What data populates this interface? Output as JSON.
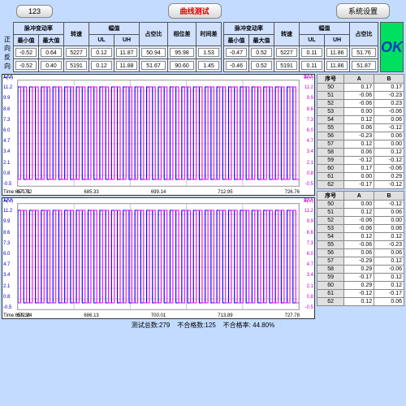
{
  "topbar": {
    "id": "123",
    "curve": "曲线测试",
    "sys": "系统设置"
  },
  "rowlabels": {
    "fwd": "正向",
    "rev": "反向"
  },
  "hdr": {
    "pulse": "脉冲变动率",
    "min": "最小值",
    "max": "最大值",
    "speed": "转速",
    "amp": "幅值",
    "ul": "UL",
    "uh": "UH",
    "duty": "占空比",
    "phase": "相位差",
    "time": "时间差"
  },
  "left": {
    "fwd": {
      "min": "-0.52",
      "max": "0.64",
      "speed": "5227",
      "ul": "0.12",
      "uh": "11.87",
      "duty": "50.94",
      "phase": "95.98",
      "time": "1.53"
    },
    "rev": {
      "min": "-0.52",
      "max": "0.40",
      "speed": "5191",
      "ul": "0.12",
      "uh": "11.88",
      "duty": "51.67",
      "phase": "90.60",
      "time": "1.45"
    }
  },
  "right": {
    "fwd": {
      "min": "-0.47",
      "max": "0.52",
      "speed": "5227",
      "ul": "0.11",
      "uh": "11.86",
      "duty": "51.76"
    },
    "rev": {
      "min": "-0.46",
      "max": "0.52",
      "speed": "5191",
      "ul": "0.11",
      "uh": "11.86",
      "duty": "51.87"
    }
  },
  "ok": "OK",
  "chart": {
    "yticks": [
      "12.5",
      "11.2",
      "9.9",
      "8.6",
      "7.3",
      "6.0",
      "4.7",
      "3.4",
      "2.1",
      "0.8",
      "-0.5"
    ],
    "ylabel": "A(V)",
    "yrlabel": "B(V)",
    "x1": [
      "Time:657.71",
      "671.52",
      "685.33",
      "699.14",
      "712.95",
      "726.76"
    ],
    "x2": [
      "Time:658.36",
      "672.24",
      "686.13",
      "700.01",
      "713.89",
      "727.78"
    ],
    "colorA": "#0000ff",
    "colorB": "#ff00ff",
    "grid": "#d0d0d0"
  },
  "data1": {
    "hdr": {
      "seq": "序号",
      "a": "A",
      "b": "B"
    },
    "rows": [
      [
        "50",
        "0.17",
        "0.17"
      ],
      [
        "51",
        "-0.06",
        "-0.23"
      ],
      [
        "52",
        "-0.06",
        "0.23"
      ],
      [
        "53",
        "0.00",
        "-0.06"
      ],
      [
        "54",
        "0.12",
        "0.06"
      ],
      [
        "55",
        "0.06",
        "-0.12"
      ],
      [
        "56",
        "-0.23",
        "0.06"
      ],
      [
        "57",
        "0.12",
        "0.00"
      ],
      [
        "58",
        "0.06",
        "0.12"
      ],
      [
        "59",
        "-0.12",
        "-0.12"
      ],
      [
        "60",
        "0.17",
        "-0.06"
      ],
      [
        "61",
        "0.00",
        "0.29"
      ],
      [
        "62",
        "-0.17",
        "-0.12"
      ]
    ]
  },
  "data2": {
    "rows": [
      [
        "50",
        "0.00",
        "-0.12"
      ],
      [
        "51",
        "0.12",
        "0.06"
      ],
      [
        "52",
        "-0.06",
        "0.00"
      ],
      [
        "53",
        "-0.06",
        "0.06"
      ],
      [
        "54",
        "0.12",
        "0.12"
      ],
      [
        "55",
        "-0.06",
        "-0.23"
      ],
      [
        "56",
        "0.06",
        "0.06"
      ],
      [
        "57",
        "-0.29",
        "0.12"
      ],
      [
        "58",
        "0.29",
        "-0.06"
      ],
      [
        "59",
        "-0.17",
        "0.12"
      ],
      [
        "60",
        "0.29",
        "0.12"
      ],
      [
        "61",
        "-0.12",
        "-0.17"
      ],
      [
        "62",
        "0.12",
        "0.06"
      ]
    ]
  },
  "footer": {
    "total": "测试总数:279",
    "fail": "不合格数:125",
    "rate": "不合格率: 44.80%"
  }
}
